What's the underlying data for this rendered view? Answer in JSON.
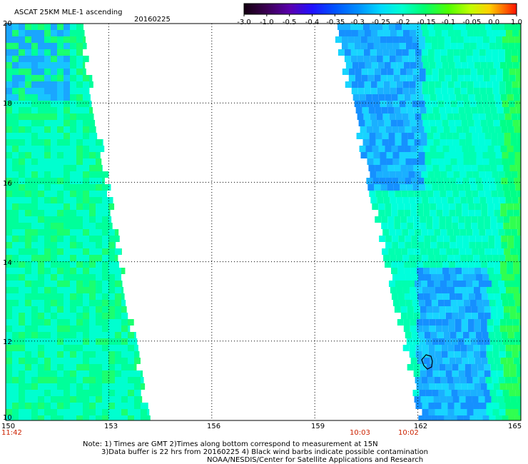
{
  "header": {
    "title": "ASCAT 25KM MLE-1 ascending",
    "date": "20160225"
  },
  "colorbar": {
    "labels": [
      "-3.0",
      "-1.0",
      "-0.5",
      "-0.4",
      "-0.35",
      "-0.3",
      "-0.25",
      "-0.2",
      "-0.15",
      "-0.1",
      "-0.05",
      "0.0",
      "1.0"
    ],
    "colors": [
      "#1a0010",
      "#4a0070",
      "#5000c8",
      "#0020ff",
      "#0090ff",
      "#00d0ff",
      "#00ffe8",
      "#00ff90",
      "#30ff00",
      "#b0ff00",
      "#ffff00",
      "#ff9000",
      "#ff1000"
    ]
  },
  "map": {
    "lon_ticks": [
      "150",
      "153",
      "156",
      "159",
      "162",
      "165"
    ],
    "lat_ticks": [
      "20",
      "18",
      "16",
      "14",
      "12",
      "10"
    ],
    "lon_range": [
      150,
      165
    ],
    "lat_range": [
      10,
      20
    ],
    "pass_times": {
      "left": "11:42",
      "mid": "10:03",
      "right": "10:02"
    }
  },
  "footer": {
    "note_line1": "Note: 1) Times are GMT 2)Times along bottom correspond to measurement at 15N",
    "note_line2": "3)Data buffer is 22 hrs from 20160225 4) Black wind barbs indicate possible contamination",
    "credit": "NOAA/NESDIS/Center for Satellite Applications and Research"
  }
}
